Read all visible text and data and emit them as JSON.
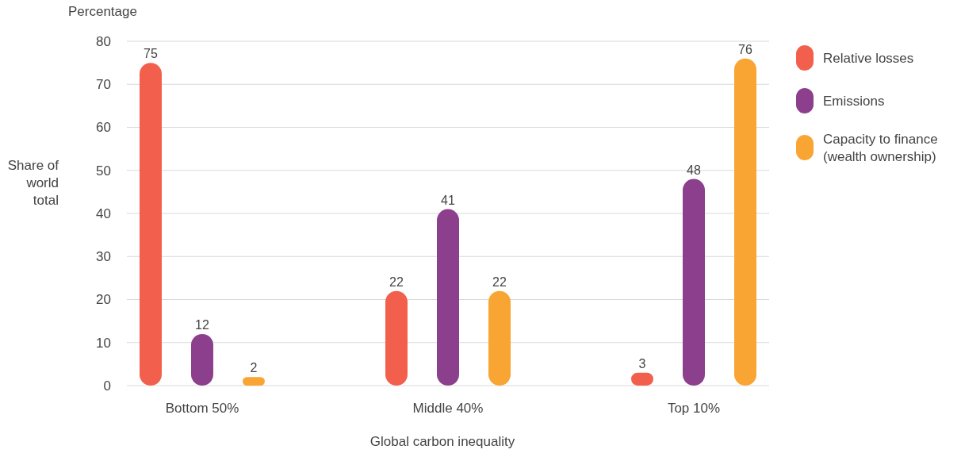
{
  "chart_data": {
    "type": "bar",
    "xlabel": "Global carbon inequality",
    "ylabel": "Share of world total",
    "annotations": [
      "Percentage"
    ],
    "categories": [
      "Bottom 50%",
      "Middle 40%",
      "Top 10%"
    ],
    "series": [
      {
        "name": "Relative losses",
        "color": "#f2604d",
        "values": [
          75,
          22,
          3
        ]
      },
      {
        "name": "Emissions",
        "color": "#8b3f8c",
        "values": [
          12,
          41,
          48
        ]
      },
      {
        "name": "Capacity to finance (wealth ownership)",
        "color": "#f9a533",
        "values": [
          2,
          22,
          76
        ]
      }
    ],
    "ylim": [
      0,
      80
    ],
    "yticks": [
      0,
      10,
      20,
      30,
      40,
      50,
      60,
      70,
      80
    ],
    "grid": "y",
    "legend": "right",
    "data_labels": true
  }
}
